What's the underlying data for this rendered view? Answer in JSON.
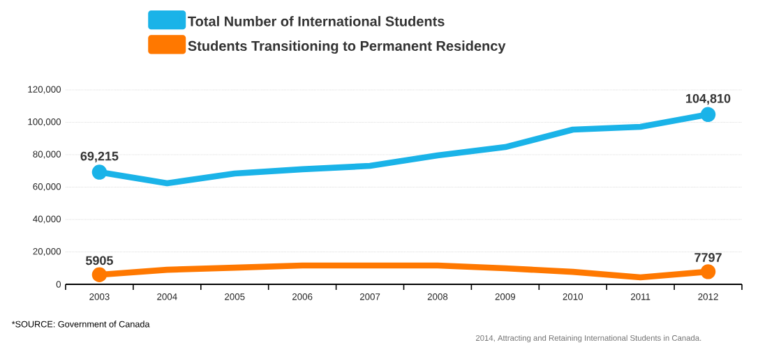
{
  "chart_data": {
    "type": "line",
    "categories": [
      "2003",
      "2004",
      "2005",
      "2006",
      "2007",
      "2008",
      "2009",
      "2010",
      "2011",
      "2012"
    ],
    "series": [
      {
        "name": "Total Number of International Students",
        "color": "#1ab3e8",
        "values": [
          69215,
          62400,
          68400,
          71000,
          73100,
          79600,
          84700,
          95500,
          97200,
          104810
        ],
        "value_labels": [
          "69,215",
          null,
          null,
          null,
          null,
          null,
          null,
          null,
          null,
          "104,810"
        ]
      },
      {
        "name": "Students Transitioning to Permanent Residency",
        "color": "#ff7800",
        "values": [
          5905,
          9000,
          10300,
          11600,
          11600,
          11600,
          9900,
          7700,
          4300,
          7797
        ],
        "value_labels": [
          "5905",
          null,
          null,
          null,
          null,
          null,
          null,
          null,
          null,
          "7797"
        ]
      }
    ],
    "ylim": [
      0,
      120000
    ],
    "yticks": [
      {
        "value": 0,
        "label": "0"
      },
      {
        "value": 20000,
        "label": "20,000"
      },
      {
        "value": 40000,
        "label": "40,000"
      },
      {
        "value": 60000,
        "label": "60,000"
      },
      {
        "value": 80000,
        "label": "80,000"
      },
      {
        "value": 100000,
        "label": "100,000"
      },
      {
        "value": 120000,
        "label": "120,000"
      }
    ],
    "grid": "y",
    "legend": "top",
    "line_style": "solid",
    "annotations": [
      "*SOURCE: Government of Canada",
      "2014, Attracting and Retaining International Students in Canada."
    ]
  }
}
